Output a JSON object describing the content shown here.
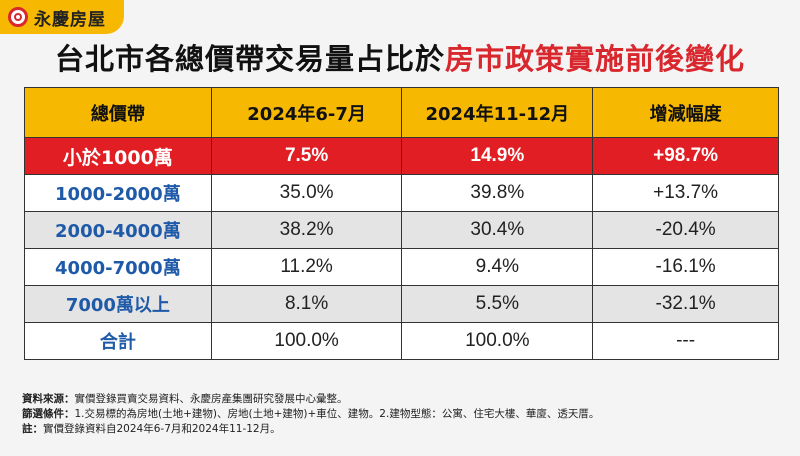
{
  "brand": {
    "name": "永慶房屋",
    "accent": "#f6b800",
    "red": "#d9272e"
  },
  "title": {
    "part1": "台北市",
    "part2": "各總價帶交易量占比",
    "part3": "於",
    "part4": "房市政策實施前後變化"
  },
  "table": {
    "headers": [
      "總價帶",
      "2024年6-7月",
      "2024年11-12月",
      "增減幅度"
    ],
    "rows": [
      {
        "label": "小於1000萬",
        "v1": "7.5%",
        "v2": "14.9%",
        "change": "+98.7%"
      },
      {
        "label": "1000-2000萬",
        "v1": "35.0%",
        "v2": "39.8%",
        "change": "+13.7%"
      },
      {
        "label": "2000-4000萬",
        "v1": "38.2%",
        "v2": "30.4%",
        "change": "-20.4%"
      },
      {
        "label": "4000-7000萬",
        "v1": "11.2%",
        "v2": "9.4%",
        "change": "-16.1%"
      },
      {
        "label": "7000萬以上",
        "v1": "8.1%",
        "v2": "5.5%",
        "change": "-32.1%"
      },
      {
        "label": "合計",
        "v1": "100.0%",
        "v2": "100.0%",
        "change": "---"
      }
    ]
  },
  "notes": [
    {
      "key": "資料來源：",
      "text": "實價登錄買賣交易資料、永慶房產集團研究發展中心彙整。"
    },
    {
      "key": "篩選條件：",
      "text": "1.交易標的為房地(土地+建物)、房地(土地+建物)+車位、建物。2.建物型態：公寓、住宅大樓、華廈、透天厝。"
    },
    {
      "key": "註：",
      "text": "實價登錄資料自2024年6-7月和2024年11-12月。"
    }
  ]
}
